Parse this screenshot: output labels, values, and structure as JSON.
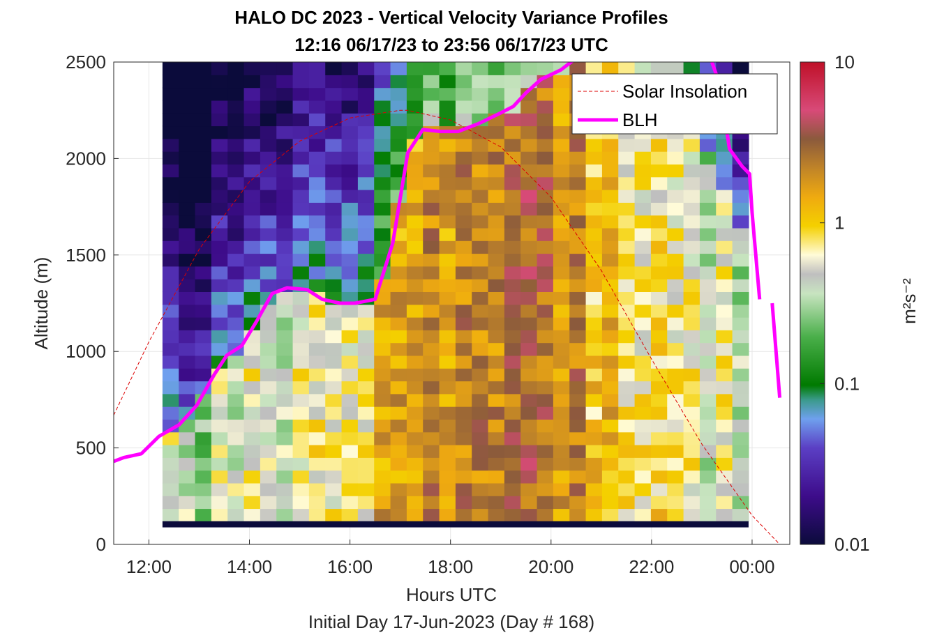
{
  "chart_data": {
    "type": "heatmap",
    "title": "HALO DC 2023 - Vertical Velocity Variance Profiles",
    "subtitle": "12:16 06/17/23 to 23:56 06/17/23  UTC",
    "xlabel": "Hours UTC",
    "xlabel2": "Initial Day 17-Jun-2023 (Day # 168)",
    "ylabel": "Altitude (m)",
    "xlim": [
      11.3,
      24.75
    ],
    "ylim": [
      0,
      2500
    ],
    "x_tick_labels": [
      "12:00",
      "14:00",
      "16:00",
      "18:00",
      "20:00",
      "22:00",
      "00:00"
    ],
    "x_tick_values": [
      12,
      14,
      16,
      18,
      20,
      22,
      24
    ],
    "y_tick_labels": [
      "0",
      "500",
      "1000",
      "1500",
      "2000",
      "2500"
    ],
    "y_tick_values": [
      0,
      500,
      1000,
      1500,
      2000,
      2500
    ],
    "colorbar": {
      "label": "m²s⁻²",
      "scale": "log",
      "range": [
        0.01,
        10
      ],
      "tick_labels": [
        "0.01",
        "0.1",
        "1",
        "10"
      ],
      "tick_values": [
        0.01,
        0.1,
        1,
        10
      ]
    },
    "grid": true,
    "legend_position": "top-right",
    "legend": [
      "Solar Insolation",
      "BLH"
    ],
    "variance_profile_summary": {
      "time_range_hours": [
        12.27,
        23.93
      ],
      "altitude_range_m": [
        120,
        2500
      ],
      "pattern": "log10 variance peaks near 19:00 UTC around 500-1300 m (~3-5 m2s-2); low values (~0.01-0.05) aloft before 16:00 UTC"
    },
    "series": [
      {
        "name": "Solar Insolation",
        "color": "#dd0000",
        "style": "dashed",
        "x": [
          11.3,
          12.0,
          13.0,
          14.0,
          15.0,
          16.0,
          17.0,
          17.15,
          18.0,
          19.0,
          20.0,
          21.0,
          22.0,
          23.0,
          24.0,
          24.55
        ],
        "y": [
          670,
          1050,
          1530,
          1880,
          2090,
          2210,
          2250,
          2250,
          2200,
          2060,
          1800,
          1420,
          960,
          520,
          150,
          0
        ]
      },
      {
        "name": "BLH",
        "color": "#ff00ff",
        "style": "solid",
        "segments": [
          {
            "x": [
              11.3,
              11.5,
              11.85,
              12.2,
              12.6,
              12.95,
              13.3,
              13.55,
              13.85,
              14.15,
              14.45,
              14.75,
              15.15,
              15.45,
              15.8,
              16.1,
              16.5,
              16.85,
              17.15,
              17.45,
              17.8,
              18.15,
              18.55,
              18.95,
              19.25,
              19.5,
              19.8,
              20.2,
              20.45
            ],
            "y": [
              430,
              450,
              470,
              560,
              620,
              720,
              880,
              980,
              1030,
              1160,
              1300,
              1330,
              1320,
              1270,
              1250,
              1250,
              1270,
              1560,
              2030,
              2150,
              2140,
              2140,
              2180,
              2230,
              2270,
              2340,
              2410,
              2460,
              2510
            ]
          },
          {
            "x": [
              23.2,
              23.35,
              23.55,
              23.8,
              23.95,
              24.0,
              24.15
            ],
            "y": [
              2500,
              2390,
              2050,
              1960,
              1920,
              1720,
              1270
            ]
          },
          {
            "x": [
              24.4,
              24.55
            ],
            "y": [
              1250,
              760
            ]
          }
        ]
      }
    ]
  }
}
